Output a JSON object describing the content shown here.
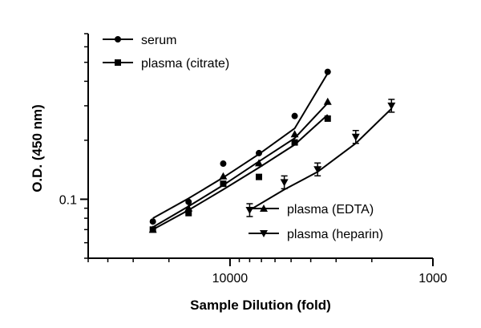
{
  "chart_data": {
    "type": "scatter",
    "title": "",
    "xlabel": "Sample Dilution (fold)",
    "ylabel": "O.D. (450 nm)",
    "x_scale": "log",
    "x_reversed": true,
    "y_scale": "log",
    "xlim": [
      50000,
      1000
    ],
    "ylim": [
      0.05,
      0.7
    ],
    "x_ticks": [
      10000,
      1000
    ],
    "x_tick_labels": [
      "10000",
      "1000"
    ],
    "y_ticks": [
      0.1
    ],
    "y_tick_labels": [
      "0.1"
    ],
    "grid": false,
    "series": [
      {
        "name": "serum",
        "marker": "circle",
        "points": [
          [
            24000,
            0.077
          ],
          [
            16000,
            0.097
          ],
          [
            10800,
            0.152
          ],
          [
            7200,
            0.172
          ],
          [
            4800,
            0.266
          ],
          [
            3300,
            0.447
          ]
        ],
        "fit": [
          [
            24000,
            0.08
          ],
          [
            16000,
            0.101
          ],
          [
            10800,
            0.129
          ],
          [
            7200,
            0.17
          ],
          [
            4800,
            0.23
          ],
          [
            3300,
            0.44
          ]
        ]
      },
      {
        "name": "plasma (citrate)",
        "marker": "square",
        "points": [
          [
            24000,
            0.07
          ],
          [
            16000,
            0.085
          ],
          [
            10800,
            0.12
          ],
          [
            7200,
            0.13
          ],
          [
            4800,
            0.195
          ],
          [
            3300,
            0.258
          ]
        ],
        "fit": [
          [
            24000,
            0.07
          ],
          [
            16000,
            0.088
          ],
          [
            10800,
            0.112
          ],
          [
            7200,
            0.145
          ],
          [
            4800,
            0.19
          ],
          [
            3300,
            0.27
          ]
        ]
      },
      {
        "name": "plasma (EDTA)",
        "marker": "triangle-up",
        "points": [
          [
            24000,
            0.07
          ],
          [
            16000,
            0.09
          ],
          [
            10800,
            0.131
          ],
          [
            7200,
            0.153
          ],
          [
            4800,
            0.215
          ],
          [
            3300,
            0.315
          ]
        ],
        "fit": [
          [
            24000,
            0.072
          ],
          [
            16000,
            0.092
          ],
          [
            10800,
            0.118
          ],
          [
            7200,
            0.156
          ],
          [
            4800,
            0.205
          ],
          [
            3300,
            0.31
          ]
        ]
      },
      {
        "name": "plasma (heparin)",
        "marker": "triangle-down",
        "points": [
          [
            8000,
            0.088
          ],
          [
            5400,
            0.122
          ],
          [
            3700,
            0.142
          ],
          [
            2400,
            0.208
          ],
          [
            1600,
            0.3
          ]
        ],
        "fit": [
          [
            8000,
            0.088
          ],
          [
            5400,
            0.112
          ],
          [
            3700,
            0.138
          ],
          [
            2400,
            0.193
          ],
          [
            1600,
            0.29
          ]
        ]
      }
    ],
    "legend": [
      {
        "label": "serum",
        "marker": "circle",
        "position": "top-left"
      },
      {
        "label": "plasma (citrate)",
        "marker": "square",
        "position": "top-left"
      },
      {
        "label": "plasma (EDTA)",
        "marker": "triangle-up",
        "position": "bottom-right"
      },
      {
        "label": "plasma (heparin)",
        "marker": "triangle-down",
        "position": "bottom-right"
      }
    ],
    "colors": {
      "ink": "#000000",
      "background": "#ffffff"
    }
  }
}
